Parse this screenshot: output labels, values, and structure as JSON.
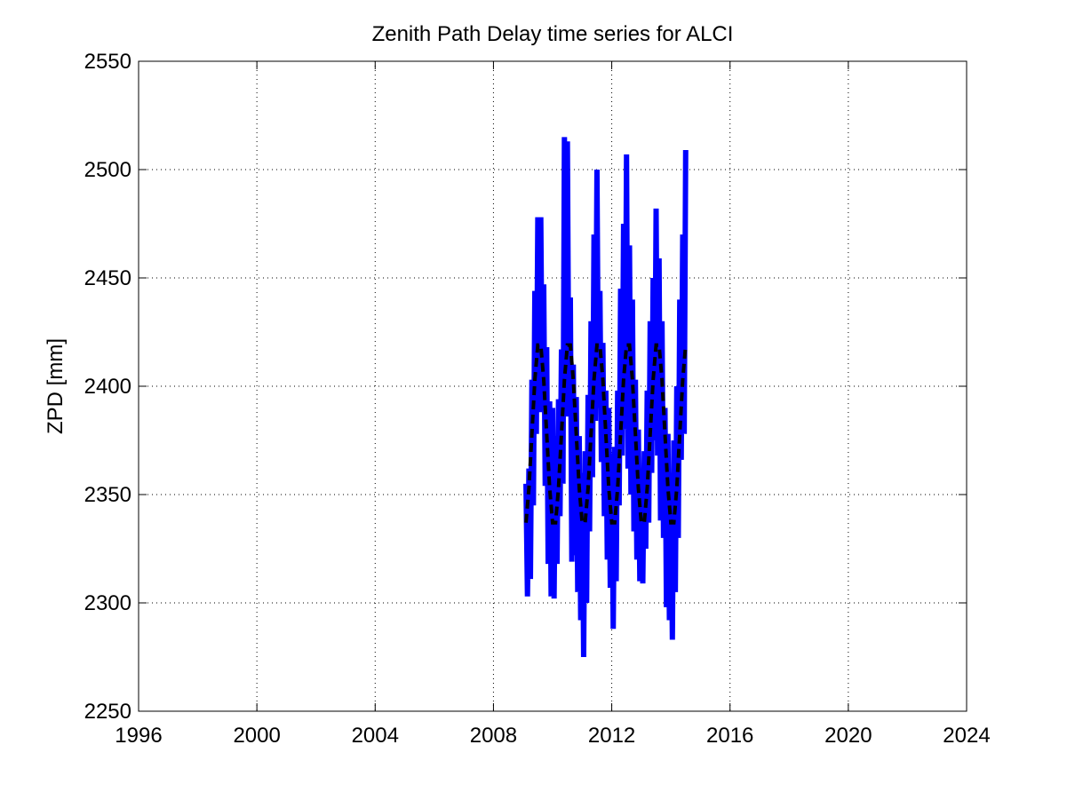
{
  "chart_data": {
    "type": "line",
    "title": "Zenith Path Delay time series for ALCI",
    "ylabel": "ZPD [mm]",
    "xlim": [
      1996,
      2024
    ],
    "xticks": [
      1996,
      2000,
      2004,
      2008,
      2012,
      2016,
      2020,
      2024
    ],
    "ylim": [
      2250,
      2550
    ],
    "yticks": [
      2250,
      2300,
      2350,
      2400,
      2450,
      2500,
      2550
    ],
    "grid": true,
    "series": [
      {
        "color": "#0000ff",
        "linestyle": "solid",
        "x": [
          2009.1,
          2009.15,
          2009.2,
          2009.25,
          2009.3,
          2009.35,
          2009.4,
          2009.45,
          2009.5,
          2009.55,
          2009.6,
          2009.65,
          2009.7,
          2009.75,
          2009.8,
          2009.85,
          2009.9,
          2009.95,
          2010.0,
          2010.05,
          2010.1,
          2010.15,
          2010.2,
          2010.25,
          2010.3,
          2010.35,
          2010.4,
          2010.45,
          2010.5,
          2010.55,
          2010.6,
          2010.65,
          2010.7,
          2010.75,
          2010.8,
          2010.85,
          2010.9,
          2010.95,
          2011.0,
          2011.05,
          2011.1,
          2011.15,
          2011.2,
          2011.25,
          2011.3,
          2011.35,
          2011.4,
          2011.45,
          2011.5,
          2011.55,
          2011.6,
          2011.65,
          2011.7,
          2011.75,
          2011.8,
          2011.85,
          2011.9,
          2011.95,
          2012.0,
          2012.05,
          2012.1,
          2012.15,
          2012.2,
          2012.25,
          2012.3,
          2012.35,
          2012.4,
          2012.45,
          2012.5,
          2012.55,
          2012.6,
          2012.65,
          2012.7,
          2012.75,
          2012.8,
          2012.85,
          2012.9,
          2012.95,
          2013.0,
          2013.05,
          2013.1,
          2013.15,
          2013.2,
          2013.25,
          2013.3,
          2013.35,
          2013.4,
          2013.45,
          2013.5,
          2013.55,
          2013.6,
          2013.65,
          2013.7,
          2013.75,
          2013.8,
          2013.85,
          2013.9,
          2013.95,
          2014.0,
          2014.05,
          2014.1,
          2014.15,
          2014.2,
          2014.25,
          2014.3,
          2014.35,
          2014.4,
          2014.45,
          2014.5
        ],
        "values": [
          2355,
          2303,
          2362,
          2311,
          2403,
          2345,
          2444,
          2378,
          2478,
          2388,
          2478,
          2392,
          2447,
          2354,
          2418,
          2318,
          2393,
          2303,
          2390,
          2302,
          2377,
          2318,
          2394,
          2340,
          2417,
          2355,
          2515,
          2386,
          2513,
          2389,
          2441,
          2319,
          2410,
          2322,
          2395,
          2305,
          2377,
          2292,
          2360,
          2275,
          2370,
          2300,
          2396,
          2333,
          2430,
          2358,
          2470,
          2384,
          2500,
          2390,
          2444,
          2365,
          2420,
          2340,
          2398,
          2320,
          2390,
          2307,
          2369,
          2288,
          2372,
          2310,
          2398,
          2345,
          2445,
          2368,
          2475,
          2380,
          2507,
          2362,
          2465,
          2350,
          2440,
          2333,
          2403,
          2320,
          2380,
          2310,
          2360,
          2309,
          2370,
          2325,
          2398,
          2337,
          2430,
          2360,
          2450,
          2375,
          2482,
          2368,
          2459,
          2338,
          2430,
          2330,
          2390,
          2298,
          2378,
          2292,
          2360,
          2283,
          2375,
          2305,
          2400,
          2330,
          2440,
          2366,
          2470,
          2378,
          2509
        ]
      },
      {
        "color": "#000000",
        "linestyle": "dashed",
        "x": [
          2009.1,
          2009.2,
          2009.3,
          2009.4,
          2009.5,
          2009.6,
          2009.7,
          2009.8,
          2009.9,
          2010.0,
          2010.1,
          2010.2,
          2010.3,
          2010.4,
          2010.5,
          2010.6,
          2010.7,
          2010.8,
          2010.9,
          2011.0,
          2011.1,
          2011.2,
          2011.3,
          2011.4,
          2011.5,
          2011.6,
          2011.7,
          2011.8,
          2011.9,
          2012.0,
          2012.1,
          2012.2,
          2012.3,
          2012.4,
          2012.5,
          2012.6,
          2012.7,
          2012.8,
          2012.9,
          2013.0,
          2013.1,
          2013.2,
          2013.3,
          2013.4,
          2013.5,
          2013.6,
          2013.7,
          2013.8,
          2013.9,
          2014.0,
          2014.1,
          2014.2,
          2014.3,
          2014.4,
          2014.5
        ],
        "values": [
          2337,
          2353,
          2378,
          2403,
          2419,
          2419,
          2403,
          2378,
          2353,
          2337,
          2337,
          2353,
          2378,
          2403,
          2419,
          2419,
          2403,
          2378,
          2353,
          2337,
          2337,
          2353,
          2378,
          2403,
          2419,
          2419,
          2403,
          2378,
          2353,
          2337,
          2337,
          2353,
          2378,
          2403,
          2419,
          2419,
          2403,
          2378,
          2353,
          2337,
          2337,
          2353,
          2378,
          2403,
          2419,
          2419,
          2403,
          2378,
          2353,
          2337,
          2337,
          2353,
          2378,
          2403,
          2419
        ]
      }
    ]
  }
}
